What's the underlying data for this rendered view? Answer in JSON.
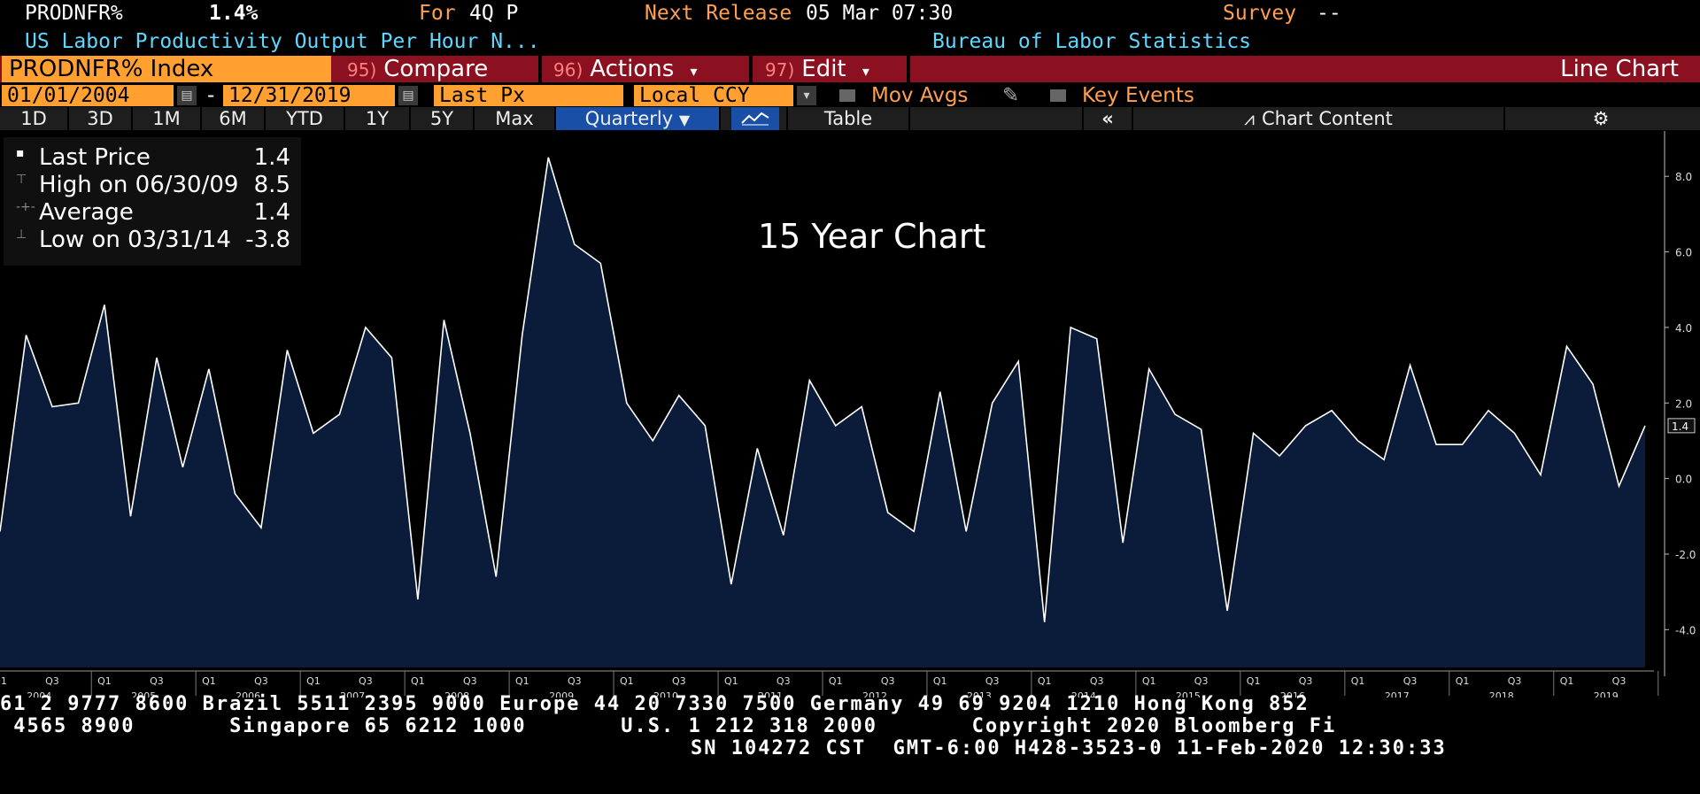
{
  "header": {
    "ticker": "PRODNFR%",
    "value": "1.4%",
    "period_label": "For",
    "period": "4Q P",
    "next_release_label": "Next Release",
    "next_release": "05 Mar 07:30",
    "survey_label": "Survey",
    "survey": "--",
    "description": "US Labor Productivity Output Per Hour N...",
    "source": "Bureau of Labor Statistics"
  },
  "toolbar": {
    "security": "PRODNFR% Index",
    "compare_num": "95)",
    "compare": "Compare",
    "actions_num": "96)",
    "actions": "Actions",
    "edit_num": "97)",
    "edit": "Edit",
    "chart_type": "Line Chart"
  },
  "controls": {
    "start_date": "01/01/2004",
    "dash": "-",
    "end_date": "12/31/2019",
    "field": "Last Px",
    "currency": "Local CCY",
    "mov_avgs": "Mov Avgs",
    "key_events": "Key Events"
  },
  "ranges": [
    "1D",
    "3D",
    "1M",
    "6M",
    "YTD",
    "1Y",
    "5Y",
    "Max"
  ],
  "frequency": "Quarterly",
  "table_label": "Table",
  "chart_content_label": "Chart Content",
  "legend": {
    "last_price_label": "Last Price",
    "last_price": "1.4",
    "high_label": "High on 06/30/09",
    "high": "8.5",
    "average_label": "Average",
    "average": "1.4",
    "low_label": "Low on 03/31/14",
    "low": "-3.8"
  },
  "chart_data": {
    "type": "area",
    "title": "15 Year Chart",
    "x": [
      "2004Q1",
      "2004Q2",
      "2004Q3",
      "2004Q4",
      "2005Q1",
      "2005Q2",
      "2005Q3",
      "2005Q4",
      "2006Q1",
      "2006Q2",
      "2006Q3",
      "2006Q4",
      "2007Q1",
      "2007Q2",
      "2007Q3",
      "2007Q4",
      "2008Q1",
      "2008Q2",
      "2008Q3",
      "2008Q4",
      "2009Q1",
      "2009Q2",
      "2009Q3",
      "2009Q4",
      "2010Q1",
      "2010Q2",
      "2010Q3",
      "2010Q4",
      "2011Q1",
      "2011Q2",
      "2011Q3",
      "2011Q4",
      "2012Q1",
      "2012Q2",
      "2012Q3",
      "2012Q4",
      "2013Q1",
      "2013Q2",
      "2013Q3",
      "2013Q4",
      "2014Q1",
      "2014Q2",
      "2014Q3",
      "2014Q4",
      "2015Q1",
      "2015Q2",
      "2015Q3",
      "2015Q4",
      "2016Q1",
      "2016Q2",
      "2016Q3",
      "2016Q4",
      "2017Q1",
      "2017Q2",
      "2017Q3",
      "2017Q4",
      "2018Q1",
      "2018Q2",
      "2018Q3",
      "2018Q4",
      "2019Q1",
      "2019Q2",
      "2019Q3",
      "2019Q4"
    ],
    "values": [
      -1.4,
      3.8,
      1.9,
      2.0,
      4.6,
      -1.0,
      3.2,
      0.3,
      2.9,
      -0.4,
      -1.3,
      3.4,
      1.2,
      1.7,
      4.0,
      3.2,
      -3.2,
      4.2,
      1.2,
      -2.6,
      3.8,
      8.5,
      6.2,
      5.7,
      2.0,
      1.0,
      2.2,
      1.4,
      -2.8,
      0.8,
      -1.5,
      2.6,
      1.4,
      1.9,
      -0.9,
      -1.4,
      2.3,
      -1.4,
      2.0,
      3.1,
      -3.8,
      4.0,
      3.7,
      -1.7,
      2.9,
      1.7,
      1.3,
      -3.5,
      1.2,
      0.6,
      1.4,
      1.8,
      1.0,
      0.5,
      3.0,
      0.9,
      0.9,
      1.8,
      1.2,
      0.1,
      3.5,
      2.5,
      -0.2,
      1.4
    ],
    "ylim": [
      -5.0,
      9.2
    ],
    "y_ticks": [
      "-4.0",
      "-2.0",
      "0.0",
      "2.0",
      "4.0",
      "6.0",
      "8.0"
    ],
    "year_labels": [
      "2004",
      "2005",
      "2006",
      "2007",
      "2008",
      "2009",
      "2010",
      "2011",
      "2012",
      "2013",
      "2014",
      "2015",
      "2016",
      "2017",
      "2018",
      "2019"
    ],
    "quarter_labels": [
      "Q1",
      "Q3"
    ],
    "last_value_label": "1.4",
    "line_color": "#ffffff",
    "fill_color": "#0a1c3a"
  },
  "footer": {
    "line1": "61 2 9777 8600 Brazil 5511 2395 9000 Europe 44 20 7330 7500 Germany 49 69 9204 1210 Hong Kong 852",
    "line2": " 4565 8900       Singapore 65 6212 1000       U.S. 1 212 318 2000       Copyright 2020 Bloomberg Fi",
    "line3": "SN 104272 CST  GMT-6:00 H428-3523-0 11-Feb-2020 12:30:33"
  }
}
